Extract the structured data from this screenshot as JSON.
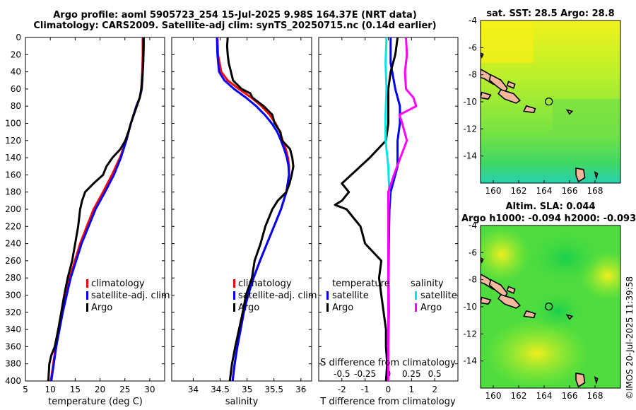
{
  "header": {
    "line1": "Argo profile: aoml 5905723_254 15-Jul-2025 9.98S 164.37E (NRT data)",
    "line2": "Climatology: CARS2009. Satellite-adj clim: synTS_20250715.nc (0.14d earlier)"
  },
  "colors": {
    "climatology": "#ff0000",
    "satellite": "#0000ff",
    "argo": "#000000",
    "t_satellite": "#0000ff",
    "s_satellite": "#00e5e5",
    "s_argo": "#ff00ff",
    "land": "#f4b79c"
  },
  "chart_data": [
    {
      "type": "line",
      "id": "temperature",
      "xlabel": "temperature (deg C)",
      "ylabel": "",
      "xlim": [
        5,
        33
      ],
      "ylim": [
        400,
        0
      ],
      "xticks": [
        5,
        10,
        15,
        20,
        25,
        30
      ],
      "yticks": [
        0,
        20,
        40,
        60,
        80,
        100,
        120,
        140,
        160,
        180,
        200,
        220,
        240,
        260,
        280,
        300,
        320,
        340,
        360,
        380,
        400
      ],
      "legend": [
        "climatology",
        "satellite-adj. clim",
        "Argo"
      ],
      "series": [
        {
          "name": "climatology",
          "depth": [
            0,
            20,
            40,
            60,
            70,
            80,
            100,
            120,
            140,
            160,
            180,
            200,
            240,
            280,
            320,
            360,
            400
          ],
          "values": [
            28.6,
            28.6,
            28.5,
            28.3,
            28.0,
            27.3,
            26.2,
            25.3,
            24.0,
            22.4,
            20.6,
            18.7,
            16.0,
            13.9,
            12.4,
            11.1,
            10.1
          ]
        },
        {
          "name": "satellite-adj. clim",
          "depth": [
            0,
            20,
            40,
            60,
            70,
            80,
            100,
            120,
            140,
            160,
            180,
            200,
            240,
            280,
            320,
            360,
            400
          ],
          "values": [
            28.7,
            28.7,
            28.6,
            28.4,
            28.0,
            27.3,
            26.2,
            25.3,
            24.2,
            22.8,
            21.0,
            19.1,
            16.3,
            14.1,
            12.5,
            11.2,
            10.2
          ]
        },
        {
          "name": "Argo",
          "depth": [
            0,
            10,
            30,
            50,
            60,
            70,
            80,
            90,
            100,
            110,
            120,
            130,
            140,
            150,
            160,
            170,
            180,
            190,
            200,
            220,
            240,
            260,
            280,
            300,
            320,
            340,
            360,
            370,
            380,
            400
          ],
          "values": [
            28.8,
            28.8,
            28.7,
            28.5,
            28.3,
            28.0,
            27.4,
            26.8,
            26.2,
            25.7,
            25.1,
            24.1,
            22.5,
            21.3,
            20.6,
            18.7,
            17.0,
            16.4,
            16.0,
            15.6,
            15.0,
            14.4,
            13.5,
            12.8,
            12.2,
            11.6,
            10.9,
            10.2,
            9.8,
            9.6
          ]
        }
      ]
    },
    {
      "type": "line",
      "id": "salinity",
      "xlabel": "salinity",
      "xlim": [
        33.6,
        36.2
      ],
      "ylim": [
        400,
        0
      ],
      "xticks": [
        34,
        34.5,
        35,
        35.5,
        36
      ],
      "legend": [
        "climatology",
        "satellite-adj. clim",
        "Argo"
      ],
      "series": [
        {
          "name": "climatology",
          "depth": [
            0,
            20,
            40,
            50,
            60,
            70,
            80,
            90,
            100,
            110,
            120,
            130,
            140,
            150,
            160,
            180,
            200,
            220,
            240,
            260,
            280,
            300,
            320,
            340,
            360,
            380,
            400
          ],
          "values": [
            34.45,
            34.46,
            34.52,
            34.64,
            34.85,
            35.08,
            35.27,
            35.42,
            35.53,
            35.61,
            35.66,
            35.72,
            35.76,
            35.78,
            35.78,
            35.73,
            35.63,
            35.5,
            35.37,
            35.24,
            35.12,
            35.02,
            34.94,
            34.88,
            34.82,
            34.77,
            34.73
          ]
        },
        {
          "name": "satellite-adj. clim",
          "depth": [
            0,
            20,
            40,
            50,
            60,
            70,
            80,
            90,
            100,
            110,
            120,
            130,
            140,
            150,
            160,
            180,
            200,
            220,
            240,
            260,
            280,
            300,
            320,
            340,
            360,
            380,
            400
          ],
          "values": [
            34.44,
            34.45,
            34.48,
            34.58,
            34.76,
            34.98,
            35.17,
            35.33,
            35.46,
            35.56,
            35.63,
            35.69,
            35.74,
            35.77,
            35.78,
            35.73,
            35.63,
            35.5,
            35.37,
            35.24,
            35.12,
            35.02,
            34.94,
            34.88,
            34.82,
            34.77,
            34.73
          ]
        },
        {
          "name": "Argo",
          "depth": [
            0,
            10,
            20,
            30,
            40,
            50,
            60,
            65,
            70,
            80,
            90,
            100,
            110,
            120,
            130,
            140,
            150,
            160,
            170,
            180,
            190,
            200,
            220,
            240,
            260,
            280,
            300,
            320,
            340,
            360,
            380,
            400
          ],
          "values": [
            34.64,
            34.63,
            34.64,
            34.66,
            34.7,
            34.74,
            34.9,
            35.06,
            35.1,
            35.31,
            35.47,
            35.51,
            35.62,
            35.65,
            35.8,
            35.84,
            35.86,
            35.83,
            35.79,
            35.73,
            35.57,
            35.47,
            35.34,
            35.25,
            35.14,
            35.09,
            34.98,
            34.92,
            34.85,
            34.78,
            34.72,
            34.68
          ]
        }
      ]
    },
    {
      "type": "line",
      "id": "difference",
      "xlabel": "T difference from climatology",
      "secondary_xlabel": "S difference from climatology",
      "xlim": [
        -3,
        3
      ],
      "ylim": [
        400,
        0
      ],
      "xticks": [
        -2,
        -1,
        0,
        1,
        2
      ],
      "secondary_xlim": [
        -0.75,
        0.75
      ],
      "secondary_xticks": [
        -0.5,
        -0.25,
        0,
        0.25,
        0.5
      ],
      "secondary_ticklabels": [
        "-0.5",
        "-0.25",
        "0",
        "0.25",
        "0.5"
      ],
      "legend_temperature": {
        "title": "temperature",
        "entries": [
          "satellite",
          "Argo"
        ]
      },
      "legend_salinity": {
        "title": "salinity",
        "entries": [
          "satellite",
          "Argo"
        ]
      },
      "series": [
        {
          "name": "temperature satellite",
          "axis": "T",
          "depth": [
            0,
            30,
            60,
            80,
            100,
            120,
            150,
            180,
            200,
            240,
            280,
            320,
            360,
            400
          ],
          "values": [
            0.1,
            0.1,
            0.3,
            0.5,
            0.5,
            0.4,
            0.4,
            0.1,
            0.05,
            0.02,
            0.01,
            0.02,
            0.0,
            0.0
          ]
        },
        {
          "name": "temperature Argo",
          "axis": "T",
          "depth": [
            0,
            20,
            40,
            60,
            80,
            100,
            120,
            140,
            160,
            170,
            180,
            190,
            195,
            200,
            220,
            240,
            260,
            280,
            300,
            320,
            340,
            360,
            380,
            400
          ],
          "values": [
            0.4,
            0.3,
            0.1,
            0.0,
            0.0,
            0.0,
            -0.1,
            -0.8,
            -1.6,
            -2.0,
            -1.7,
            -2.0,
            -2.3,
            -1.8,
            -1.2,
            -1.0,
            -0.3,
            -0.4,
            -0.3,
            -0.2,
            -0.1,
            -0.1,
            -0.05,
            -0.1
          ]
        },
        {
          "name": "salinity satellite",
          "axis": "S",
          "depth": [
            0,
            30,
            60,
            90,
            120,
            150,
            180,
            200,
            240,
            280,
            320,
            360,
            400
          ],
          "values": [
            -0.02,
            -0.03,
            -0.02,
            -0.03,
            -0.03,
            0.0,
            0.01,
            0.0,
            0.0,
            0.0,
            0.0,
            0.0,
            0.0
          ]
        },
        {
          "name": "salinity Argo",
          "axis": "S",
          "depth": [
            0,
            20,
            40,
            60,
            70,
            80,
            90,
            100,
            120,
            140,
            160,
            180,
            200,
            220,
            260,
            300,
            340,
            380,
            400
          ],
          "values": [
            0.19,
            0.2,
            0.18,
            0.19,
            0.27,
            0.3,
            0.12,
            0.15,
            0.2,
            0.13,
            0.06,
            0.0,
            0.0,
            0.0,
            0.0,
            0.0,
            0.0,
            0.0,
            0.0
          ]
        }
      ]
    },
    {
      "type": "heatmap",
      "id": "sst_map",
      "title": "sat. SST: 28.5 Argo: 28.8",
      "xlim": [
        159,
        170
      ],
      "ylim": [
        -16,
        -4
      ],
      "xticks": [
        160,
        162,
        164,
        166,
        168
      ],
      "yticks": [
        -14,
        -12,
        -10,
        -8,
        -6,
        -4
      ],
      "marker": {
        "lon": 164.37,
        "lat": -9.98
      }
    },
    {
      "type": "heatmap",
      "id": "sla_map",
      "title": "Altim. SLA: 0.044",
      "subtitle": "Argo h1000: -0.094 h2000: -0.093",
      "xlim": [
        159,
        170
      ],
      "ylim": [
        -16,
        -4
      ],
      "xticks": [
        160,
        162,
        164,
        166,
        168
      ],
      "yticks": [
        -14,
        -12,
        -10,
        -8,
        -6,
        -4
      ],
      "marker": {
        "lon": 164.37,
        "lat": -9.98
      }
    }
  ],
  "footer": {
    "credit": "©IMOS 20-Jul-2025 11:39:58"
  }
}
